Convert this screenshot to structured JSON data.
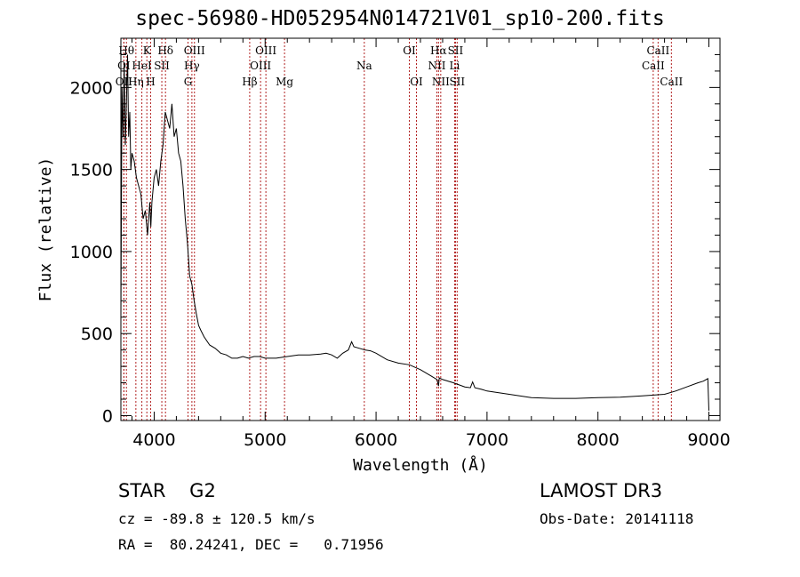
{
  "chart_data": {
    "type": "line",
    "title": "spec-56980-HD052954N014721V01_sp10-200.fits",
    "xlabel": "Wavelength (Å)",
    "ylabel": "Flux (relative)",
    "xlim": [
      3700,
      9100
    ],
    "ylim": [
      -30,
      2300
    ],
    "xticks": [
      4000,
      5000,
      6000,
      7000,
      8000,
      9000
    ],
    "yticks": [
      0,
      500,
      1000,
      1500,
      2000
    ],
    "series": [
      {
        "name": "flux",
        "x": [
          3700,
          3710,
          3720,
          3730,
          3740,
          3750,
          3760,
          3770,
          3780,
          3790,
          3800,
          3820,
          3840,
          3860,
          3880,
          3900,
          3920,
          3940,
          3960,
          3970,
          3980,
          4000,
          4020,
          4040,
          4060,
          4080,
          4100,
          4120,
          4140,
          4160,
          4180,
          4200,
          4220,
          4240,
          4260,
          4280,
          4300,
          4320,
          4340,
          4360,
          4380,
          4400,
          4420,
          4450,
          4500,
          4550,
          4600,
          4650,
          4700,
          4750,
          4800,
          4850,
          4900,
          4950,
          5000,
          5100,
          5200,
          5300,
          5400,
          5500,
          5550,
          5600,
          5650,
          5700,
          5750,
          5780,
          5800,
          5850,
          5900,
          5950,
          6000,
          6100,
          6200,
          6300,
          6400,
          6500,
          6550,
          6563,
          6570,
          6600,
          6700,
          6800,
          6850,
          6870,
          6890,
          6950,
          7000,
          7200,
          7400,
          7600,
          7800,
          8000,
          8200,
          8400,
          8600,
          8700,
          8800,
          8900,
          8950,
          8990,
          9000
        ],
        "values": [
          600,
          2000,
          1700,
          2150,
          1650,
          1900,
          2200,
          1700,
          1850,
          1500,
          1600,
          1550,
          1450,
          1400,
          1350,
          1200,
          1250,
          1100,
          1300,
          1150,
          1300,
          1450,
          1500,
          1400,
          1550,
          1650,
          1850,
          1800,
          1750,
          1900,
          1700,
          1750,
          1600,
          1550,
          1400,
          1200,
          1050,
          850,
          800,
          700,
          620,
          550,
          520,
          480,
          430,
          410,
          380,
          370,
          350,
          350,
          360,
          350,
          360,
          360,
          350,
          350,
          360,
          370,
          370,
          375,
          380,
          370,
          350,
          380,
          400,
          450,
          420,
          410,
          400,
          395,
          380,
          340,
          320,
          310,
          280,
          240,
          220,
          180,
          230,
          220,
          200,
          175,
          170,
          205,
          170,
          160,
          150,
          130,
          110,
          105,
          105,
          110,
          112,
          120,
          130,
          150,
          175,
          200,
          210,
          225,
          30
        ]
      }
    ],
    "lines": [
      {
        "label": "OII",
        "wl": 3727,
        "row": 2
      },
      {
        "label": "OI",
        "wl": 3727,
        "row": 1
      },
      {
        "label": "Hθ",
        "wl": 3750,
        "row": 0
      },
      {
        "label": "Hη",
        "wl": 3835,
        "row": 2
      },
      {
        "label": "HeI",
        "wl": 3889,
        "row": 1
      },
      {
        "label": "K",
        "wl": 3934,
        "row": 0
      },
      {
        "label": "H",
        "wl": 3968,
        "row": 2
      },
      {
        "label": "SII",
        "wl": 4069,
        "row": 1
      },
      {
        "label": "Hδ",
        "wl": 4102,
        "row": 0
      },
      {
        "label": "G",
        "wl": 4305,
        "row": 2
      },
      {
        "label": "Hγ",
        "wl": 4340,
        "row": 1
      },
      {
        "label": "OIII",
        "wl": 4363,
        "row": 0
      },
      {
        "label": "Hβ",
        "wl": 4861,
        "row": 2
      },
      {
        "label": "OIII",
        "wl": 4959,
        "row": 1
      },
      {
        "label": "OIII",
        "wl": 5007,
        "row": 0
      },
      {
        "label": "Mg",
        "wl": 5175,
        "row": 2
      },
      {
        "label": "Na",
        "wl": 5894,
        "row": 1
      },
      {
        "label": "OI",
        "wl": 6300,
        "row": 0
      },
      {
        "label": "OI",
        "wl": 6364,
        "row": 2
      },
      {
        "label": "NII",
        "wl": 6548,
        "row": 1
      },
      {
        "label": "Hα",
        "wl": 6563,
        "row": 0
      },
      {
        "label": "NII",
        "wl": 6583,
        "row": 2
      },
      {
        "label": "Li",
        "wl": 6708,
        "row": 1
      },
      {
        "label": "SII",
        "wl": 6716,
        "row": 0
      },
      {
        "label": "SII",
        "wl": 6731,
        "row": 2
      },
      {
        "label": "CaII",
        "wl": 8498,
        "row": 1
      },
      {
        "label": "CaII",
        "wl": 8542,
        "row": 0
      },
      {
        "label": "CaII",
        "wl": 8662,
        "row": 2
      }
    ],
    "line_color": "#b22222"
  },
  "info": {
    "classification": "STAR    G2",
    "survey": "LAMOST DR3",
    "cz": "cz = -89.8 ± 120.5 km/s",
    "obs_date": "Obs-Date: 20141118",
    "radec": "RA =  80.24241, DEC =   0.71956"
  }
}
